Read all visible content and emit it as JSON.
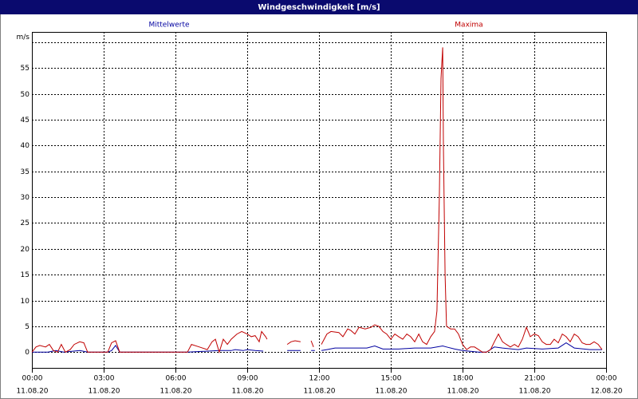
{
  "chart_data": {
    "type": "line",
    "title": "Windgeschwindigkeit [m/s]",
    "xlim": [
      0,
      24
    ],
    "xticks": [
      {
        "value": 0,
        "label": "00:00"
      },
      {
        "value": 3,
        "label": "03:00"
      },
      {
        "value": 6,
        "label": "06:00"
      },
      {
        "value": 9,
        "label": "09:00"
      },
      {
        "value": 12,
        "label": "12:00"
      },
      {
        "value": 15,
        "label": "15:00"
      },
      {
        "value": 18,
        "label": "18:00"
      },
      {
        "value": 21,
        "label": "21:00"
      },
      {
        "value": 24,
        "label": "00:00"
      }
    ],
    "xtick_dates": [
      "11.08.20",
      "11.08.20",
      "11.08.20",
      "11.08.20",
      "11.08.20",
      "11.08.20",
      "11.08.20",
      "11.08.20",
      "12.08.20"
    ],
    "ylim": [
      -3.2,
      62
    ],
    "yticks": [
      0,
      5,
      10,
      15,
      20,
      25,
      30,
      35,
      40,
      45,
      50,
      55,
      {
        "value": 60,
        "label": "m/s"
      }
    ],
    "grid": true,
    "series": [
      {
        "name": "Mittelwerte",
        "color": "#0000a0",
        "x": [
          0,
          0.67,
          1,
          1.33,
          2,
          2.33,
          3.17,
          3.33,
          3.5,
          3.67,
          6.5,
          7.83,
          8.33,
          8.5,
          8.83,
          9,
          9.33,
          9.67,
          10.2,
          10.67,
          11.23,
          11.4,
          11.67,
          11.83,
          11.9,
          12.1,
          12.33,
          12.67,
          13.33,
          14,
          14.33,
          14.67,
          15.33,
          16,
          16.67,
          17.17,
          17.33,
          17.67,
          18,
          18.67,
          19,
          19.33,
          19.67,
          20.33,
          20.67,
          21.33,
          22,
          22.33,
          22.67,
          23.33,
          23.83
        ],
        "values": [
          0,
          0,
          0.3,
          0,
          0.3,
          0,
          0,
          0.3,
          1.3,
          0,
          0,
          0.3,
          0.3,
          0.5,
          0.3,
          0.5,
          0.3,
          0.2,
          null,
          0.3,
          0.3,
          null,
          0.3,
          0.3,
          null,
          0.3,
          0.5,
          0.8,
          0.8,
          0.8,
          1.2,
          0.6,
          0.6,
          0.8,
          0.8,
          1.2,
          1.0,
          0.6,
          0.3,
          0,
          0,
          1.0,
          0.8,
          0.5,
          0.8,
          0.6,
          0.8,
          1.8,
          0.8,
          0.5,
          0.5
        ]
      },
      {
        "name": "Maxima",
        "color": "#c00000",
        "x": [
          0,
          0.17,
          0.33,
          0.57,
          0.73,
          0.9,
          1.07,
          1.23,
          1.4,
          1.6,
          1.77,
          2,
          2.17,
          2.33,
          3.17,
          3.33,
          3.5,
          3.67,
          6.5,
          6.67,
          7,
          7.33,
          7.53,
          7.67,
          7.83,
          8,
          8.17,
          8.33,
          8.57,
          8.77,
          9,
          9.17,
          9.33,
          9.5,
          9.6,
          9.77,
          9.83,
          10.2,
          10.67,
          10.83,
          11,
          11.23,
          11.4,
          11.67,
          11.77,
          11.85,
          12.1,
          12.33,
          12.5,
          12.83,
          13,
          13.2,
          13.33,
          13.5,
          13.67,
          13.93,
          14.17,
          14.33,
          14.5,
          14.67,
          14.83,
          15,
          15.17,
          15.33,
          15.5,
          15.67,
          15.83,
          16,
          16.17,
          16.33,
          16.5,
          16.67,
          16.83,
          16.93,
          17.03,
          17.1,
          17.17,
          17.2,
          17.27,
          17.33,
          17.5,
          17.67,
          17.83,
          18,
          18.17,
          18.33,
          18.5,
          18.67,
          18.83,
          19,
          19.17,
          19.33,
          19.5,
          19.67,
          19.83,
          20,
          20.17,
          20.33,
          20.5,
          20.67,
          20.83,
          21,
          21.17,
          21.33,
          21.5,
          21.67,
          21.83,
          22,
          22.17,
          22.33,
          22.5,
          22.67,
          22.83,
          23,
          23.17,
          23.33,
          23.5,
          23.67,
          23.83
        ],
        "values": [
          0,
          1,
          1.3,
          1.0,
          1.5,
          0.3,
          0,
          1.5,
          0,
          0.5,
          1.5,
          2,
          1.8,
          0,
          0,
          1.8,
          2.2,
          0,
          0,
          1.5,
          1.0,
          0.5,
          2,
          2.5,
          0,
          2.5,
          1.5,
          2.5,
          3.5,
          4,
          3.5,
          3.0,
          3.2,
          2,
          4,
          3,
          2.5,
          null,
          1.5,
          2,
          2.2,
          2,
          null,
          2.2,
          1,
          null,
          1.5,
          3.5,
          4,
          3.8,
          3,
          4.5,
          4.2,
          3.5,
          4.8,
          4.5,
          4.8,
          5.3,
          5.0,
          4,
          3.5,
          2.5,
          3.5,
          3.0,
          2.5,
          3.5,
          3,
          2,
          3.5,
          2,
          1.5,
          3,
          4,
          8,
          30,
          53,
          59,
          40,
          15,
          5,
          4.5,
          4.5,
          3.5,
          1.5,
          0.5,
          1,
          1,
          0.5,
          0,
          0,
          0.5,
          2,
          3.5,
          2,
          1.5,
          1.0,
          1.5,
          1.0,
          2.5,
          4.8,
          3,
          3.5,
          3.2,
          2,
          1.5,
          1.5,
          2.5,
          1.8,
          3.5,
          3.0,
          2,
          3.5,
          3.0,
          1.8,
          1.5,
          1.5,
          2,
          1.5,
          0.5
        ]
      }
    ]
  }
}
